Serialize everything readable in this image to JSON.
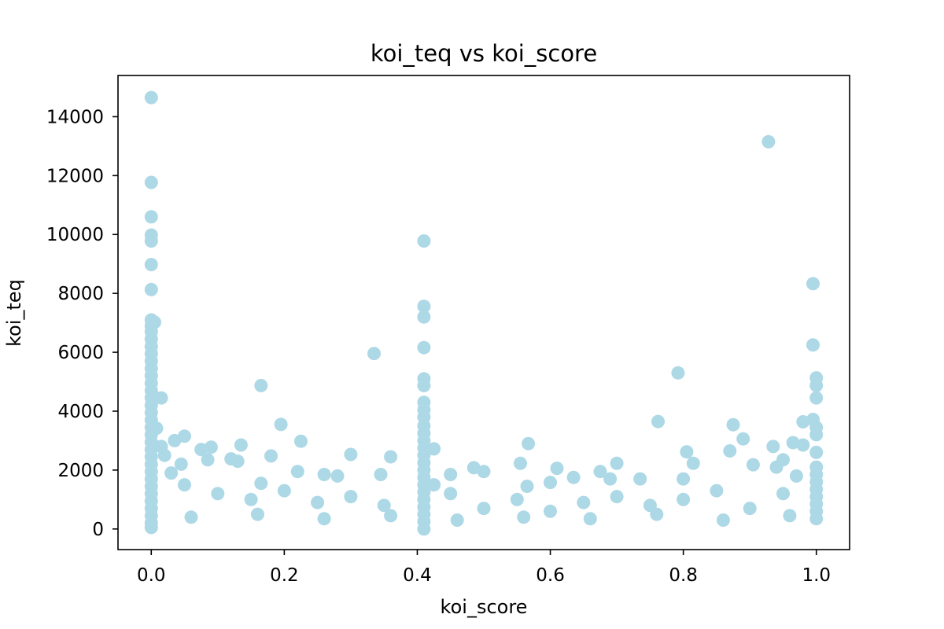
{
  "chart_data": {
    "type": "scatter",
    "title": "koi_teq vs koi_score",
    "xlabel": "koi_score",
    "ylabel": "koi_teq",
    "xlim": [
      -0.05,
      1.05
    ],
    "ylim": [
      -700,
      15400
    ],
    "xticks": [
      0.0,
      0.2,
      0.4,
      0.6,
      0.8,
      1.0
    ],
    "xtick_labels": [
      "0.0",
      "0.2",
      "0.4",
      "0.6",
      "0.8",
      "1.0"
    ],
    "yticks": [
      0,
      2000,
      4000,
      6000,
      8000,
      10000,
      12000,
      14000
    ],
    "ytick_labels": [
      "0",
      "2000",
      "4000",
      "6000",
      "8000",
      "10000",
      "12000",
      "14000"
    ],
    "grid": false,
    "marker_color": "#add8e6",
    "series": [
      {
        "points": [
          [
            0.0,
            14650
          ],
          [
            0.0,
            11770
          ],
          [
            0.0,
            10600
          ],
          [
            0.0,
            9980
          ],
          [
            0.0,
            9780
          ],
          [
            0.0,
            8980
          ],
          [
            0.0,
            8130
          ],
          [
            0.0,
            7100
          ],
          [
            0.005,
            7020
          ],
          [
            0.0,
            6900
          ],
          [
            0.0,
            6700
          ],
          [
            0.0,
            6450
          ],
          [
            0.0,
            6200
          ],
          [
            0.0,
            5950
          ],
          [
            0.0,
            5700
          ],
          [
            0.0,
            5450
          ],
          [
            0.0,
            5200
          ],
          [
            0.0,
            4950
          ],
          [
            0.0,
            4700
          ],
          [
            0.0,
            4450
          ],
          [
            0.015,
            4450
          ],
          [
            0.0,
            4200
          ],
          [
            0.0,
            3950
          ],
          [
            0.0,
            3700
          ],
          [
            0.0,
            3450
          ],
          [
            0.008,
            3420
          ],
          [
            0.0,
            3200
          ],
          [
            0.0,
            2950
          ],
          [
            0.0,
            2700
          ],
          [
            0.0,
            2450
          ],
          [
            0.0,
            2200
          ],
          [
            0.0,
            1950
          ],
          [
            0.0,
            1700
          ],
          [
            0.0,
            1450
          ],
          [
            0.0,
            1200
          ],
          [
            0.0,
            950
          ],
          [
            0.0,
            700
          ],
          [
            0.0,
            450
          ],
          [
            0.0,
            200
          ],
          [
            0.0,
            50
          ],
          [
            0.02,
            2500
          ],
          [
            0.035,
            3000
          ],
          [
            0.05,
            3150
          ],
          [
            0.045,
            2200
          ],
          [
            0.015,
            2800
          ],
          [
            0.03,
            1900
          ],
          [
            0.075,
            2700
          ],
          [
            0.09,
            2780
          ],
          [
            0.085,
            2350
          ],
          [
            0.12,
            2380
          ],
          [
            0.135,
            2850
          ],
          [
            0.13,
            2300
          ],
          [
            0.165,
            4870
          ],
          [
            0.195,
            3550
          ],
          [
            0.18,
            2480
          ],
          [
            0.225,
            2980
          ],
          [
            0.22,
            1950
          ],
          [
            0.26,
            1850
          ],
          [
            0.3,
            2530
          ],
          [
            0.335,
            5960
          ],
          [
            0.36,
            2450
          ],
          [
            0.345,
            1850
          ],
          [
            0.28,
            1800
          ],
          [
            0.165,
            1550
          ],
          [
            0.41,
            9780
          ],
          [
            0.41,
            7560
          ],
          [
            0.41,
            7200
          ],
          [
            0.41,
            6160
          ],
          [
            0.41,
            5100
          ],
          [
            0.41,
            4870
          ],
          [
            0.41,
            4300
          ],
          [
            0.41,
            4050
          ],
          [
            0.41,
            3800
          ],
          [
            0.41,
            3500
          ],
          [
            0.41,
            3250
          ],
          [
            0.41,
            3000
          ],
          [
            0.41,
            2750
          ],
          [
            0.425,
            2720
          ],
          [
            0.41,
            2500
          ],
          [
            0.41,
            2250
          ],
          [
            0.41,
            2000
          ],
          [
            0.41,
            1750
          ],
          [
            0.41,
            1500
          ],
          [
            0.41,
            1250
          ],
          [
            0.41,
            1000
          ],
          [
            0.41,
            750
          ],
          [
            0.41,
            500
          ],
          [
            0.41,
            250
          ],
          [
            0.41,
            0
          ],
          [
            0.425,
            1500
          ],
          [
            0.45,
            1850
          ],
          [
            0.485,
            2080
          ],
          [
            0.5,
            1950
          ],
          [
            0.555,
            2230
          ],
          [
            0.567,
            2900
          ],
          [
            0.565,
            1450
          ],
          [
            0.61,
            2060
          ],
          [
            0.6,
            1580
          ],
          [
            0.635,
            1750
          ],
          [
            0.675,
            1950
          ],
          [
            0.7,
            2230
          ],
          [
            0.69,
            1700
          ],
          [
            0.735,
            1700
          ],
          [
            0.762,
            3650
          ],
          [
            0.792,
            5300
          ],
          [
            0.805,
            2620
          ],
          [
            0.815,
            2230
          ],
          [
            0.8,
            1700
          ],
          [
            0.87,
            2650
          ],
          [
            0.875,
            3540
          ],
          [
            0.89,
            3060
          ],
          [
            0.905,
            2180
          ],
          [
            0.935,
            2800
          ],
          [
            0.928,
            13150
          ],
          [
            0.995,
            8330
          ],
          [
            0.995,
            6250
          ],
          [
            1.0,
            5130
          ],
          [
            1.0,
            4870
          ],
          [
            1.0,
            4450
          ],
          [
            0.995,
            3720
          ],
          [
            0.98,
            3640
          ],
          [
            1.0,
            3450
          ],
          [
            1.0,
            3200
          ],
          [
            0.965,
            2930
          ],
          [
            0.98,
            2850
          ],
          [
            1.0,
            2600
          ],
          [
            0.95,
            2350
          ],
          [
            1.0,
            2100
          ],
          [
            0.94,
            2100
          ],
          [
            1.0,
            1850
          ],
          [
            0.97,
            1800
          ],
          [
            1.0,
            1600
          ],
          [
            1.0,
            1350
          ],
          [
            1.0,
            1100
          ],
          [
            1.0,
            850
          ],
          [
            1.0,
            600
          ],
          [
            1.0,
            350
          ],
          [
            0.05,
            1500
          ],
          [
            0.1,
            1200
          ],
          [
            0.15,
            1000
          ],
          [
            0.2,
            1300
          ],
          [
            0.25,
            900
          ],
          [
            0.3,
            1100
          ],
          [
            0.35,
            800
          ],
          [
            0.45,
            1200
          ],
          [
            0.5,
            700
          ],
          [
            0.55,
            1000
          ],
          [
            0.6,
            600
          ],
          [
            0.65,
            900
          ],
          [
            0.7,
            1100
          ],
          [
            0.75,
            800
          ],
          [
            0.8,
            1000
          ],
          [
            0.85,
            1300
          ],
          [
            0.9,
            700
          ],
          [
            0.95,
            1200
          ],
          [
            0.06,
            400
          ],
          [
            0.16,
            500
          ],
          [
            0.26,
            350
          ],
          [
            0.36,
            450
          ],
          [
            0.46,
            300
          ],
          [
            0.56,
            400
          ],
          [
            0.66,
            350
          ],
          [
            0.76,
            500
          ],
          [
            0.86,
            300
          ],
          [
            0.96,
            450
          ]
        ]
      }
    ]
  }
}
